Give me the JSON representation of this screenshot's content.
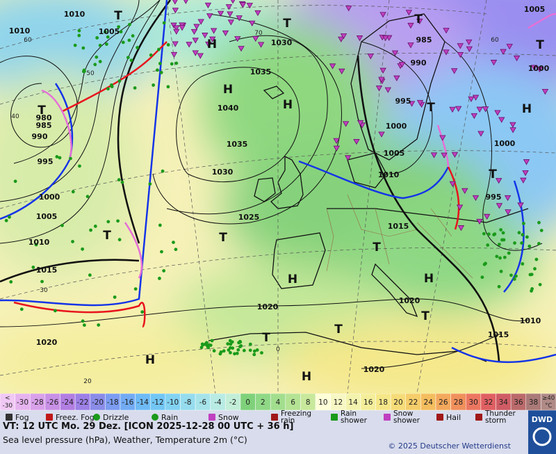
{
  "map": {
    "isobar_labels": [
      "1010",
      "1010",
      "1005",
      "1030",
      "1035",
      "1040",
      "1035",
      "1030",
      "1025",
      "995",
      "990",
      "985",
      "980",
      "1000",
      "1005",
      "1010",
      "1015",
      "1020",
      "1020",
      "1020",
      "1020",
      "1015",
      "1015",
      "1010",
      "1010",
      "1005",
      "1000",
      "995",
      "990",
      "985",
      "1000",
      "995",
      "1000",
      "1005"
    ],
    "highs": [
      "H",
      "H",
      "H",
      "H",
      "H",
      "H",
      "H",
      "H"
    ],
    "lows": [
      "T",
      "T",
      "T",
      "T",
      "T",
      "T",
      "T",
      "T",
      "T",
      "T",
      "T",
      "T",
      "T"
    ],
    "grid_labels": [
      "60",
      "50",
      "40",
      "30",
      "20",
      "70",
      "0",
      "60"
    ]
  },
  "legend": {
    "low_label": [
      "<",
      "-30"
    ],
    "values": [
      -30,
      -28,
      -26,
      -24,
      -22,
      -20,
      -18,
      -16,
      -14,
      -12,
      -10,
      -8,
      -6,
      -4,
      -2,
      0,
      2,
      4,
      6,
      8,
      10,
      12,
      14,
      16,
      18,
      20,
      22,
      24,
      26,
      28,
      30,
      32,
      34,
      36,
      38
    ],
    "colors": [
      "#e6b3ee",
      "#d9a1ea",
      "#c890e6",
      "#b27ee2",
      "#9c80e6",
      "#8a8ce8",
      "#7b9cf0",
      "#72abf4",
      "#6ebaf5",
      "#72c6f4",
      "#82d2f2",
      "#95dcee",
      "#a6e4ea",
      "#b8ebe4",
      "#c3eed8",
      "#7fd17a",
      "#8fd886",
      "#a2de8e",
      "#b4e394",
      "#c8e89b",
      "#ffffd8",
      "#f7f7c4",
      "#f3f3ae",
      "#f4ee9a",
      "#f5e788",
      "#f6dc78",
      "#f5cd6a",
      "#f4bd5e",
      "#f3a85c",
      "#f0905c",
      "#ec7660",
      "#e06062",
      "#cf5c64",
      "#bb6a6a",
      "#aa7a78"
    ],
    "high_label": [
      "≥40",
      "°C"
    ],
    "high_color": "#b08a86",
    "low_color": "#f0c8f4",
    "symbols": [
      "Fog",
      "Freez. Fog",
      "Drizzle",
      "Rain",
      "Snow",
      "Freezing rain",
      "Rain shower",
      "Snow shower",
      "Hail",
      "Thunder storm"
    ]
  },
  "footer": {
    "valid_time": "VT: 12 UTC Mo.  29 Dez. [ICON 2025-12-28  00 UTC + 36 h]",
    "description": "Sea level pressure (hPa), Weather, Temperature 2m (°C)",
    "copyright": "© 2025 Deutscher Wetterdienst",
    "logo": "DWD"
  }
}
